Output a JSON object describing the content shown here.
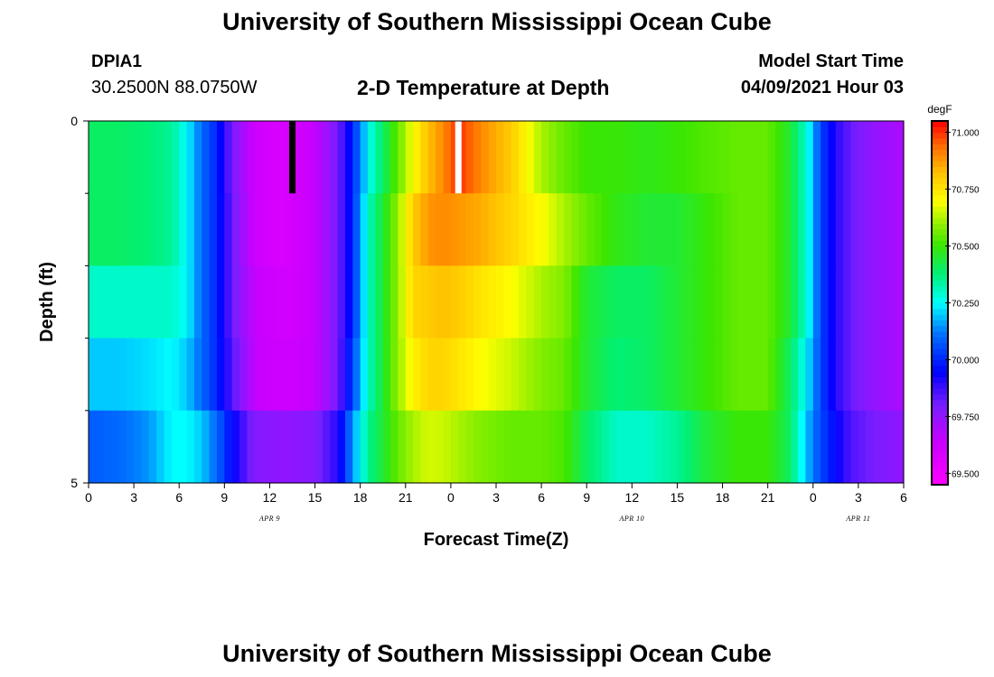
{
  "header": {
    "title": "University of Southern Mississippi Ocean Cube",
    "station": "DPIA1",
    "coordinates": "30.2500N  88.0750W",
    "subtitle": "2-D Temperature at Depth",
    "model_start_label": "Model Start Time",
    "model_start_value": "04/09/2021 Hour 03"
  },
  "footer": {
    "title": "University of Southern Mississippi Ocean Cube"
  },
  "chart_data": {
    "type": "heatmap",
    "title": "2-D Temperature at Depth",
    "xlabel": "Forecast Time(Z)",
    "ylabel": "Depth (ft)",
    "x_unit": "hours since 04/09/2021 00Z",
    "xlim": [
      0,
      54
    ],
    "ylim": [
      0,
      5
    ],
    "x_tick_values": [
      0,
      3,
      6,
      9,
      12,
      15,
      18,
      21,
      24,
      27,
      30,
      33,
      36,
      39,
      42,
      45,
      48,
      51,
      54
    ],
    "x_tick_labels": [
      "0",
      "3",
      "6",
      "9",
      "12",
      "15",
      "18",
      "21",
      "0",
      "3",
      "6",
      "9",
      "12",
      "15",
      "18",
      "21",
      "0",
      "3",
      "6"
    ],
    "y_tick_values": [
      0,
      5
    ],
    "y_tick_labels": [
      "0",
      "5"
    ],
    "y_minor_ticks": [
      1,
      2,
      3,
      4
    ],
    "date_labels": [
      {
        "text": "APR  9",
        "x": 12
      },
      {
        "text": "APR  10",
        "x": 36
      },
      {
        "text": "APR  11",
        "x": 51
      }
    ],
    "colorbar": {
      "unit": "degF",
      "min": 69.45,
      "max": 71.05,
      "labels": [
        "71.000",
        "70.750",
        "70.500",
        "70.250",
        "70.000",
        "69.750",
        "69.500"
      ],
      "label_values": [
        71.0,
        70.75,
        70.5,
        70.25,
        70.0,
        69.75,
        69.5
      ]
    },
    "model_start_marker_x": 13.5,
    "markers": [
      {
        "x": 13.5,
        "color": "#000000"
      },
      {
        "x": 24.5,
        "color": "#ffffff"
      }
    ],
    "depth_rows": [
      0.5,
      1.5,
      2.5,
      3.5,
      4.5
    ],
    "time_keys": [
      0,
      2,
      4,
      5.5,
      6.5,
      7.5,
      8.5,
      9.5,
      11,
      13,
      15,
      16.5,
      17.5,
      18.5,
      19.5,
      20.5,
      21.5,
      22.5,
      23.5,
      24.5,
      26,
      28,
      30,
      31.5,
      33,
      35,
      37,
      39,
      41,
      43,
      45,
      46.5,
      47.5,
      48.5,
      49.5,
      50.5,
      52,
      54
    ],
    "temperature_degF": [
      [
        70.4,
        70.4,
        70.38,
        70.35,
        70.25,
        70.1,
        70.0,
        69.8,
        69.62,
        69.58,
        69.65,
        69.8,
        70.0,
        70.25,
        70.4,
        70.55,
        70.7,
        70.82,
        70.9,
        71.0,
        70.9,
        70.8,
        70.62,
        70.55,
        70.5,
        70.5,
        70.48,
        70.5,
        70.53,
        70.55,
        70.55,
        70.45,
        70.3,
        70.05,
        69.9,
        69.82,
        69.75,
        69.7
      ],
      [
        70.4,
        70.4,
        70.38,
        70.35,
        70.25,
        70.1,
        70.0,
        69.82,
        69.62,
        69.58,
        69.65,
        69.8,
        70.0,
        70.3,
        70.45,
        70.6,
        70.8,
        70.88,
        70.9,
        70.88,
        70.85,
        70.78,
        70.7,
        70.62,
        70.55,
        70.48,
        70.45,
        70.45,
        70.5,
        70.55,
        70.55,
        70.45,
        70.3,
        70.05,
        69.9,
        69.82,
        69.75,
        69.7
      ],
      [
        70.3,
        70.3,
        70.3,
        70.3,
        70.25,
        70.1,
        70.0,
        69.82,
        69.65,
        69.6,
        69.65,
        69.8,
        70.0,
        70.3,
        70.45,
        70.6,
        70.78,
        70.8,
        70.82,
        70.8,
        70.75,
        70.7,
        70.62,
        70.58,
        70.45,
        70.4,
        70.4,
        70.45,
        70.5,
        70.55,
        70.55,
        70.45,
        70.3,
        70.05,
        69.9,
        69.82,
        69.75,
        69.7
      ],
      [
        70.2,
        70.2,
        70.22,
        70.25,
        70.2,
        70.1,
        70.0,
        69.85,
        69.65,
        69.62,
        69.65,
        69.8,
        70.05,
        70.3,
        70.45,
        70.6,
        70.72,
        70.78,
        70.78,
        70.75,
        70.7,
        70.65,
        70.58,
        70.55,
        70.45,
        70.38,
        70.4,
        70.45,
        70.5,
        70.55,
        70.55,
        70.4,
        70.25,
        70.05,
        69.9,
        69.82,
        69.75,
        69.7
      ],
      [
        70.08,
        70.1,
        70.15,
        70.25,
        70.25,
        70.2,
        70.1,
        69.95,
        69.78,
        69.75,
        69.78,
        69.9,
        70.15,
        70.35,
        70.45,
        70.55,
        70.62,
        70.66,
        70.65,
        70.62,
        70.58,
        70.55,
        70.55,
        70.52,
        70.4,
        70.3,
        70.3,
        70.35,
        70.45,
        70.5,
        70.5,
        70.4,
        70.2,
        70.05,
        69.95,
        69.85,
        69.8,
        69.75
      ]
    ]
  }
}
